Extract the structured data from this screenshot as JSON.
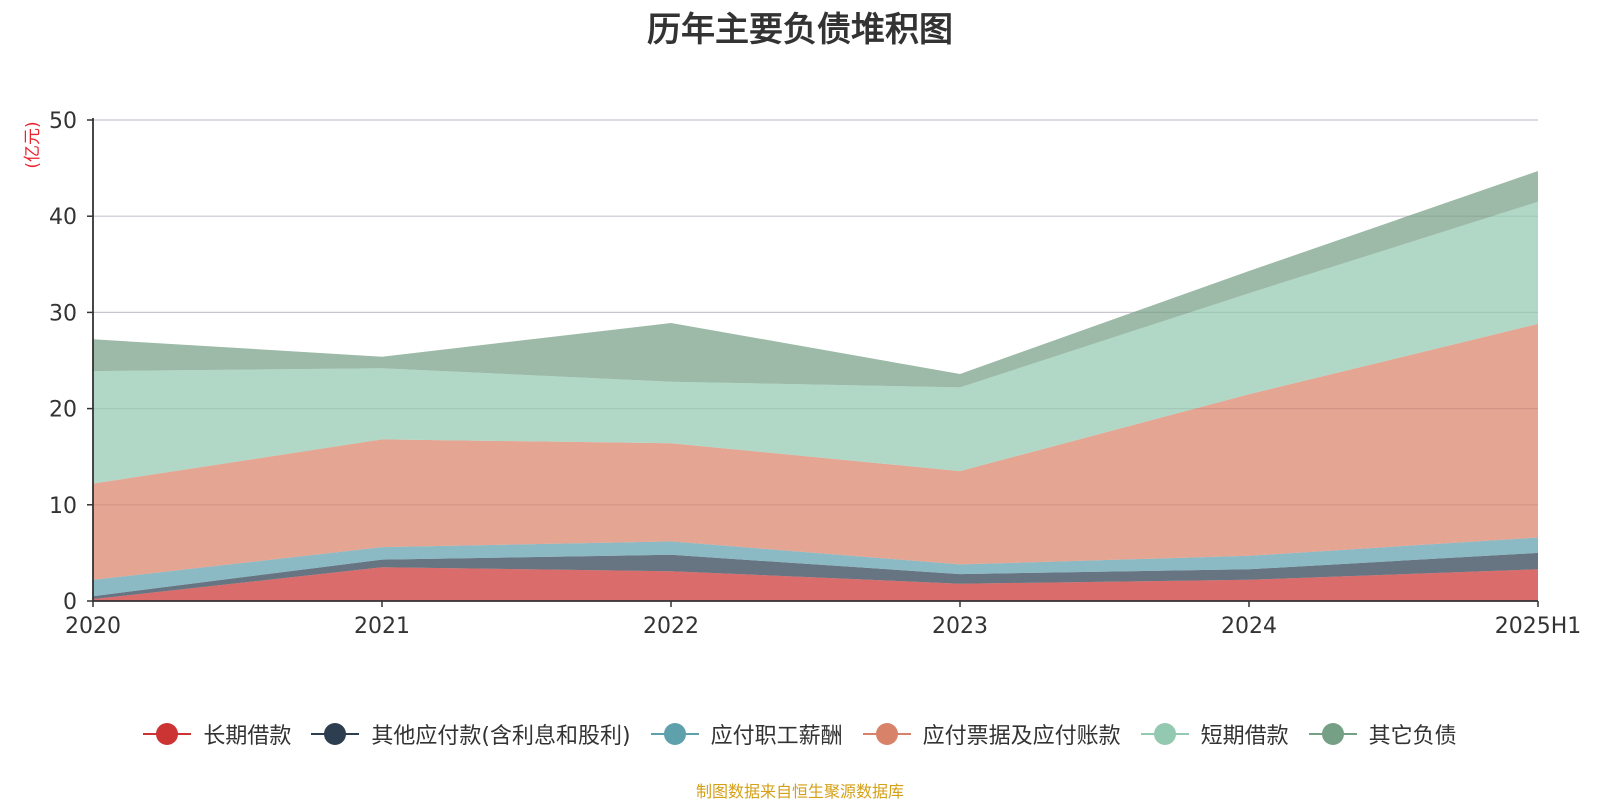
{
  "colors": {
    "long_term_loans": "#cc3333",
    "other_payables": "#2d3e50",
    "employee_pay": "#5fa0ad",
    "notes_accounts_payable": "#d9826a",
    "short_term_loans": "#93c9b0",
    "other_liabilities": "#76a085",
    "unit_label": "#e8232e",
    "source_note": "#d4a017"
  },
  "chart_data": {
    "type": "area",
    "stacked": true,
    "title": "历年主要负债堆积图",
    "ylabel": "(亿元)",
    "xlabel": "",
    "x": [
      "2020",
      "2021",
      "2022",
      "2023",
      "2024",
      "2025H1"
    ],
    "ylim": [
      0,
      50
    ],
    "yticks": [
      "0",
      "10",
      "20",
      "30",
      "40",
      "50"
    ],
    "grid": true,
    "legend_position": "bottom",
    "series": [
      {
        "name": "长期借款",
        "color_key": "long_term_loans",
        "values": [
          0.2,
          3.5,
          3.1,
          1.8,
          2.2,
          3.3
        ]
      },
      {
        "name": "其他应付款(含利息和股利)",
        "color_key": "other_payables",
        "values": [
          0.3,
          0.8,
          1.7,
          1.0,
          1.1,
          1.7
        ]
      },
      {
        "name": "应付职工薪酬",
        "color_key": "employee_pay",
        "values": [
          1.7,
          1.3,
          1.4,
          1.0,
          1.4,
          1.6
        ]
      },
      {
        "name": "应付票据及应付账款",
        "color_key": "notes_accounts_payable",
        "values": [
          10.0,
          11.2,
          10.2,
          9.7,
          16.8,
          22.2
        ]
      },
      {
        "name": "短期借款",
        "color_key": "short_term_loans",
        "values": [
          11.7,
          7.4,
          6.4,
          8.7,
          10.5,
          12.7
        ]
      },
      {
        "name": "其它负债",
        "color_key": "other_liabilities",
        "values": [
          3.3,
          1.2,
          6.1,
          1.4,
          2.3,
          3.2
        ]
      }
    ]
  },
  "source_note": "制图数据来自恒生聚源数据库"
}
